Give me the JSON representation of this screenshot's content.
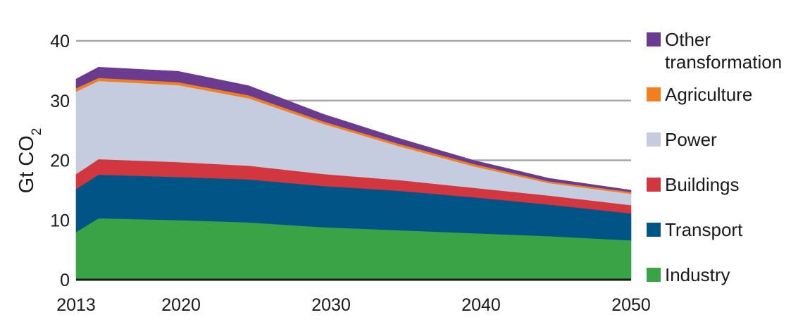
{
  "chart_data": {
    "type": "area",
    "stacked": true,
    "title": "",
    "xlabel": "",
    "ylabel": "Gt CO",
    "ylabel_subscript": "2",
    "xlim": [
      2013,
      2050
    ],
    "ylim": [
      0,
      40
    ],
    "xticks": [
      "2013",
      "2020",
      "2030",
      "2040",
      "2050"
    ],
    "yticks": [
      "0",
      "10",
      "20",
      "30",
      "40"
    ],
    "grid": true,
    "legend_position": "right",
    "x": [
      2013,
      2014.5,
      2019.8,
      2024.5,
      2029.5,
      2034.5,
      2039.5,
      2044.5,
      2050
    ],
    "series": [
      {
        "name": "Industry",
        "color": "#3aa345",
        "values": [
          8.0,
          10.3,
          10.0,
          9.6,
          8.8,
          8.3,
          7.8,
          7.3,
          6.6
        ]
      },
      {
        "name": "Transport",
        "color": "#005586",
        "values": [
          7.2,
          7.3,
          7.2,
          7.2,
          6.9,
          6.6,
          6.0,
          5.3,
          4.5
        ]
      },
      {
        "name": "Buildings",
        "color": "#d2363e",
        "values": [
          2.5,
          2.6,
          2.5,
          2.3,
          2.0,
          1.8,
          1.6,
          1.5,
          1.4
        ]
      },
      {
        "name": "Power",
        "color": "#c5cce0",
        "values": [
          13.8,
          13.1,
          12.9,
          11.3,
          8.4,
          5.7,
          3.6,
          2.1,
          1.9
        ]
      },
      {
        "name": "Agriculture",
        "color": "#f07f22",
        "values": [
          0.6,
          0.5,
          0.5,
          0.5,
          0.4,
          0.4,
          0.4,
          0.3,
          0.3
        ]
      },
      {
        "name": "Other transformation",
        "color": "#6a3b8e",
        "values": [
          1.5,
          1.8,
          1.8,
          1.6,
          1.2,
          0.9,
          0.6,
          0.5,
          0.3
        ]
      }
    ],
    "legend": [
      {
        "lines": [
          "Other",
          "transformation"
        ],
        "color": "#6a3b8e"
      },
      {
        "lines": [
          "Agriculture"
        ],
        "color": "#f07f22"
      },
      {
        "lines": [
          "Power"
        ],
        "color": "#c5cce0"
      },
      {
        "lines": [
          "Buildings"
        ],
        "color": "#d2363e"
      },
      {
        "lines": [
          "Transport"
        ],
        "color": "#005586"
      },
      {
        "lines": [
          "Industry"
        ],
        "color": "#3aa345"
      }
    ],
    "gridline_color": "#a6a6a6",
    "axis_color": "#1a1a1a"
  }
}
